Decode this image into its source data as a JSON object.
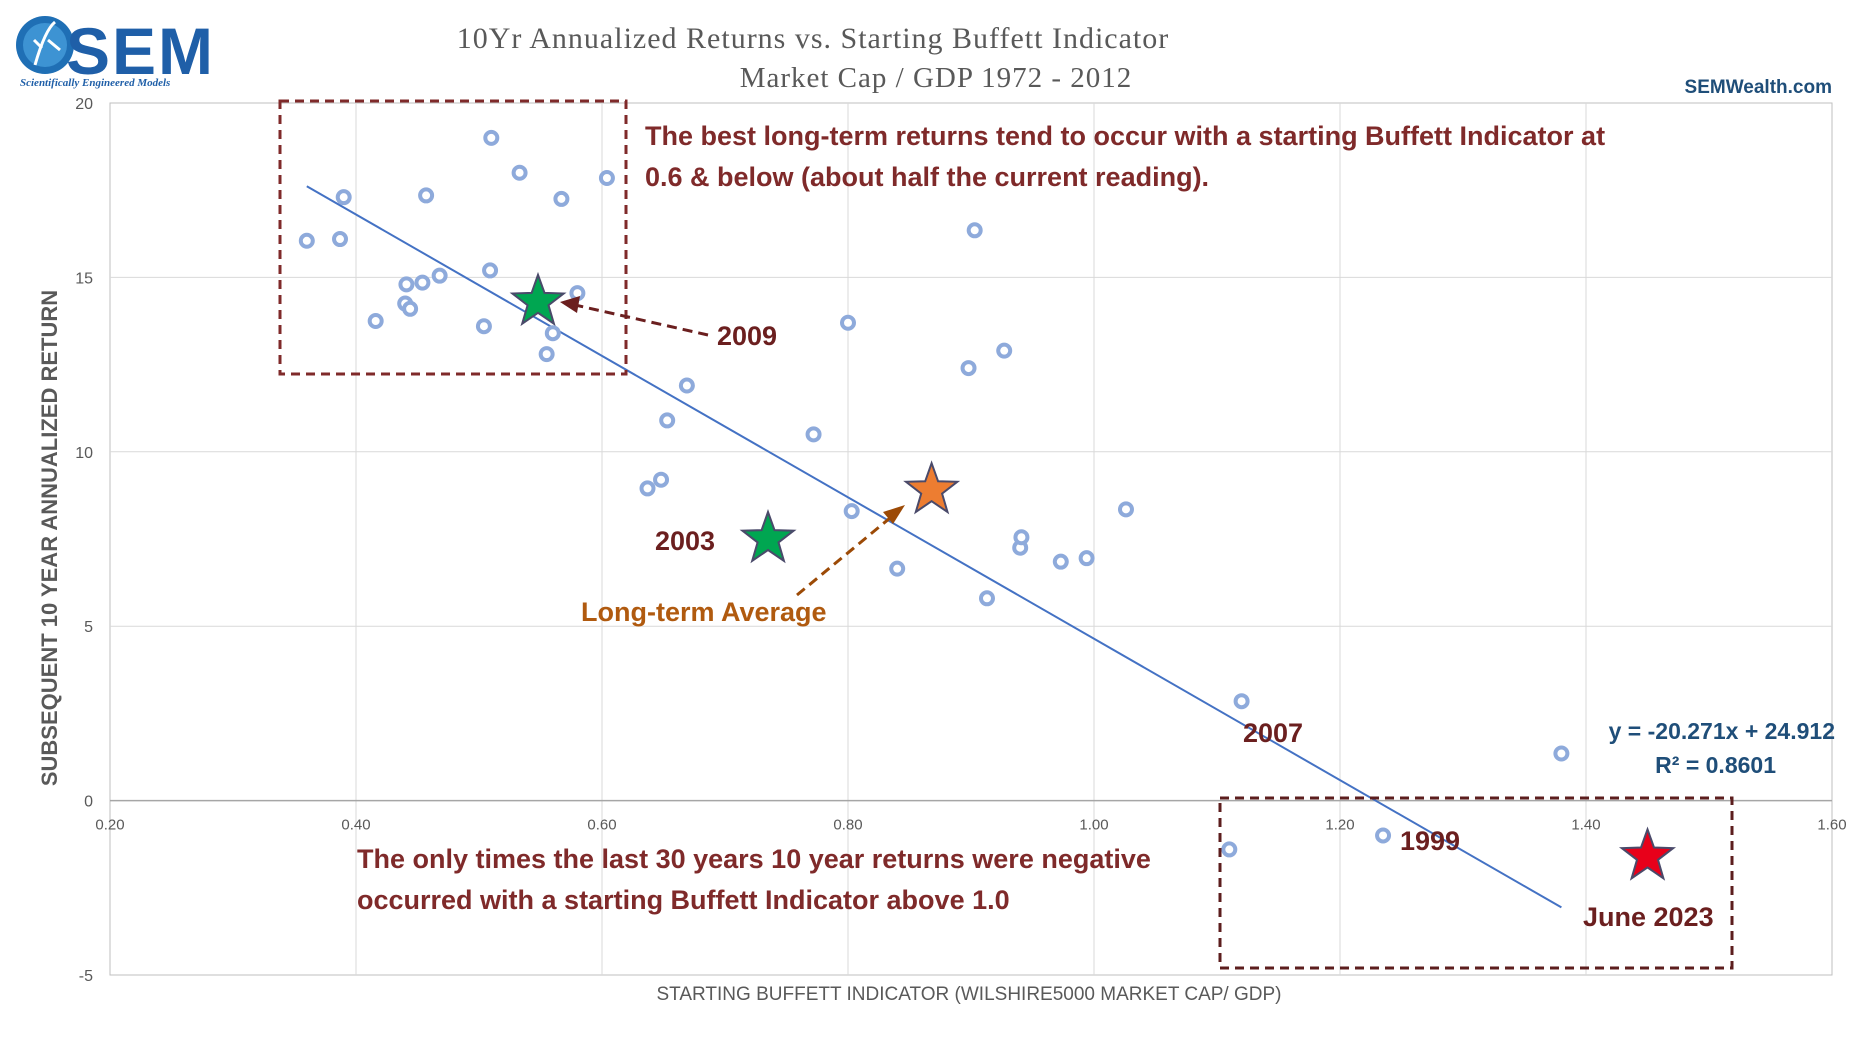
{
  "logo": {
    "text": "SEM",
    "tagline": "Scientifically Engineered Models"
  },
  "website": "SEMWealth.com",
  "chart_data": {
    "type": "scatter",
    "title": "10Yr Annualized Returns vs. Starting Buffett Indicator",
    "subtitle": "Market Cap / GDP 1972 - 2012",
    "xlabel": "STARTING BUFFETT INDICATOR (WILSHIRE5000 MARKET CAP/ GDP)",
    "ylabel": "SUBSEQUENT 10 YEAR ANNUALIZED RETURN",
    "xlim": [
      0.2,
      1.6
    ],
    "ylim": [
      -5,
      20
    ],
    "x_ticks": [
      "0.20",
      "0.40",
      "0.60",
      "0.80",
      "1.00",
      "1.20",
      "1.40",
      "1.60"
    ],
    "y_ticks": [
      "-5",
      "0",
      "5",
      "10",
      "15",
      "20"
    ],
    "grid": true,
    "series": [
      {
        "color": "#8eaadb",
        "points": [
          [
            0.36,
            16.05
          ],
          [
            0.387,
            16.1
          ],
          [
            0.39,
            17.3
          ],
          [
            0.416,
            13.75
          ],
          [
            0.44,
            14.25
          ],
          [
            0.441,
            14.8
          ],
          [
            0.444,
            14.1
          ],
          [
            0.454,
            14.85
          ],
          [
            0.457,
            17.35
          ],
          [
            0.468,
            15.05
          ],
          [
            0.504,
            13.6
          ],
          [
            0.509,
            15.2
          ],
          [
            0.51,
            19.0
          ],
          [
            0.533,
            18.0
          ],
          [
            0.555,
            12.8
          ],
          [
            0.56,
            13.4
          ],
          [
            0.567,
            17.25
          ],
          [
            0.58,
            14.55
          ],
          [
            0.604,
            17.85
          ],
          [
            0.637,
            8.95
          ],
          [
            0.648,
            9.2
          ],
          [
            0.653,
            10.9
          ],
          [
            0.669,
            11.9
          ],
          [
            0.772,
            10.5
          ],
          [
            0.8,
            13.7
          ],
          [
            0.803,
            8.3
          ],
          [
            0.84,
            6.65
          ],
          [
            0.898,
            12.4
          ],
          [
            0.903,
            16.35
          ],
          [
            0.913,
            5.8
          ],
          [
            0.927,
            12.9
          ],
          [
            0.94,
            7.25
          ],
          [
            0.941,
            7.55
          ],
          [
            0.973,
            6.85
          ],
          [
            0.994,
            6.95
          ],
          [
            1.026,
            8.35
          ],
          [
            1.12,
            2.85
          ],
          [
            1.11,
            -1.4
          ],
          [
            1.235,
            -1.0
          ],
          [
            1.38,
            1.35
          ]
        ]
      }
    ],
    "trendline": {
      "slope": -20.271,
      "intercept": 24.912,
      "x_range": [
        0.36,
        1.38
      ],
      "color": "#4472c4",
      "equation": "y = -20.271x + 24.912",
      "r_squared": "R² = 0.8601"
    },
    "highlights": [
      {
        "label": "2009",
        "x": 0.548,
        "y": 14.3,
        "color": "#00a651"
      },
      {
        "label": "2003",
        "x": 0.735,
        "y": 7.5,
        "color": "#00a651"
      },
      {
        "label": "Long-term Average",
        "x": 0.868,
        "y": 8.9,
        "color": "#ed7d31"
      },
      {
        "label": "June 2023",
        "x": 1.45,
        "y": -1.6,
        "color": "#e8001a"
      }
    ],
    "point_labels": [
      {
        "label": "2007",
        "x": 1.12,
        "y": 2.85
      },
      {
        "label": "1999",
        "x": 1.235,
        "y": -1.0
      }
    ],
    "annotations": [
      {
        "text_line1": "The best long-term returns tend to occur with a starting Buffett Indicator at",
        "text_line2": "0.6 & below (about half the current reading)."
      },
      {
        "text_line1": "The only times the last 30 years 10 year returns were negative",
        "text_line2": "occurred with a starting Buffett Indicator above 1.0"
      }
    ]
  }
}
